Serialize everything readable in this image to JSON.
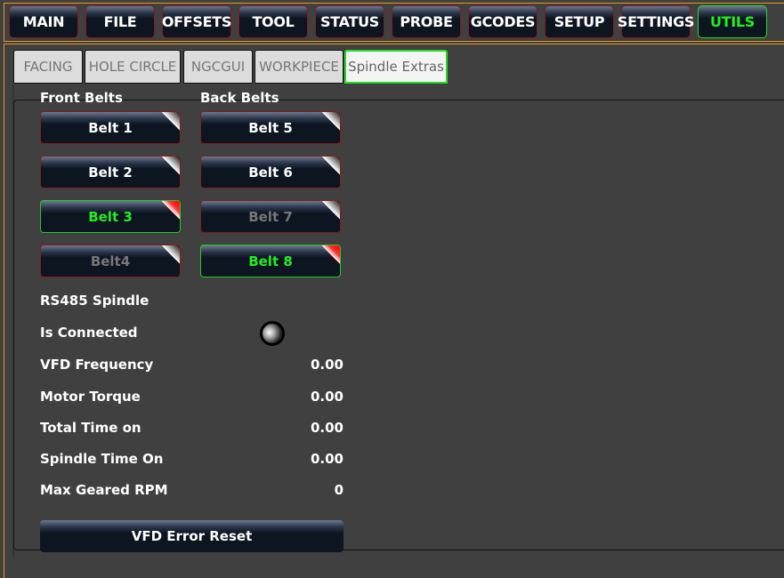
{
  "nav": [
    {
      "label": "MAIN"
    },
    {
      "label": "FILE"
    },
    {
      "label": "OFFSETS"
    },
    {
      "label": "TOOL"
    },
    {
      "label": "STATUS"
    },
    {
      "label": "PROBE"
    },
    {
      "label": "GCODES"
    },
    {
      "label": "SETUP"
    },
    {
      "label": "SETTINGS"
    },
    {
      "label": "UTILS",
      "active": true
    }
  ],
  "tabs": [
    {
      "label": "FACING"
    },
    {
      "label": "HOLE CIRCLE"
    },
    {
      "label": "NGCGUI"
    },
    {
      "label": "WORKPIECE"
    },
    {
      "label": "Spindle Extras",
      "active": true
    }
  ],
  "front_belts": {
    "title": "Front Belts",
    "items": [
      {
        "label": "Belt 1",
        "state": "off"
      },
      {
        "label": "Belt 2",
        "state": "off"
      },
      {
        "label": "Belt 3",
        "state": "on"
      },
      {
        "label": "Belt4",
        "state": "disabled"
      }
    ]
  },
  "back_belts": {
    "title": "Back Belts",
    "items": [
      {
        "label": "Belt 5",
        "state": "off"
      },
      {
        "label": "Belt 6",
        "state": "off"
      },
      {
        "label": "Belt 7",
        "state": "disabled"
      },
      {
        "label": "Belt 8",
        "state": "on"
      }
    ]
  },
  "rs485": {
    "title": "RS485 Spindle",
    "connected_label": "Is Connected",
    "connected": false,
    "rows": [
      {
        "label": "VFD Frequency",
        "value": "0.00"
      },
      {
        "label": "Motor Torque",
        "value": "0.00"
      },
      {
        "label": "Total Time on",
        "value": "0.00"
      },
      {
        "label": "Spindle Time On",
        "value": "0.00"
      },
      {
        "label": "Max Geared RPM",
        "value": "0"
      }
    ]
  },
  "reset_label": "VFD Error Reset",
  "colors": {
    "accent_active": "#22ee22",
    "frame": "#e69a1c",
    "button_border": "#8b1a1a"
  }
}
